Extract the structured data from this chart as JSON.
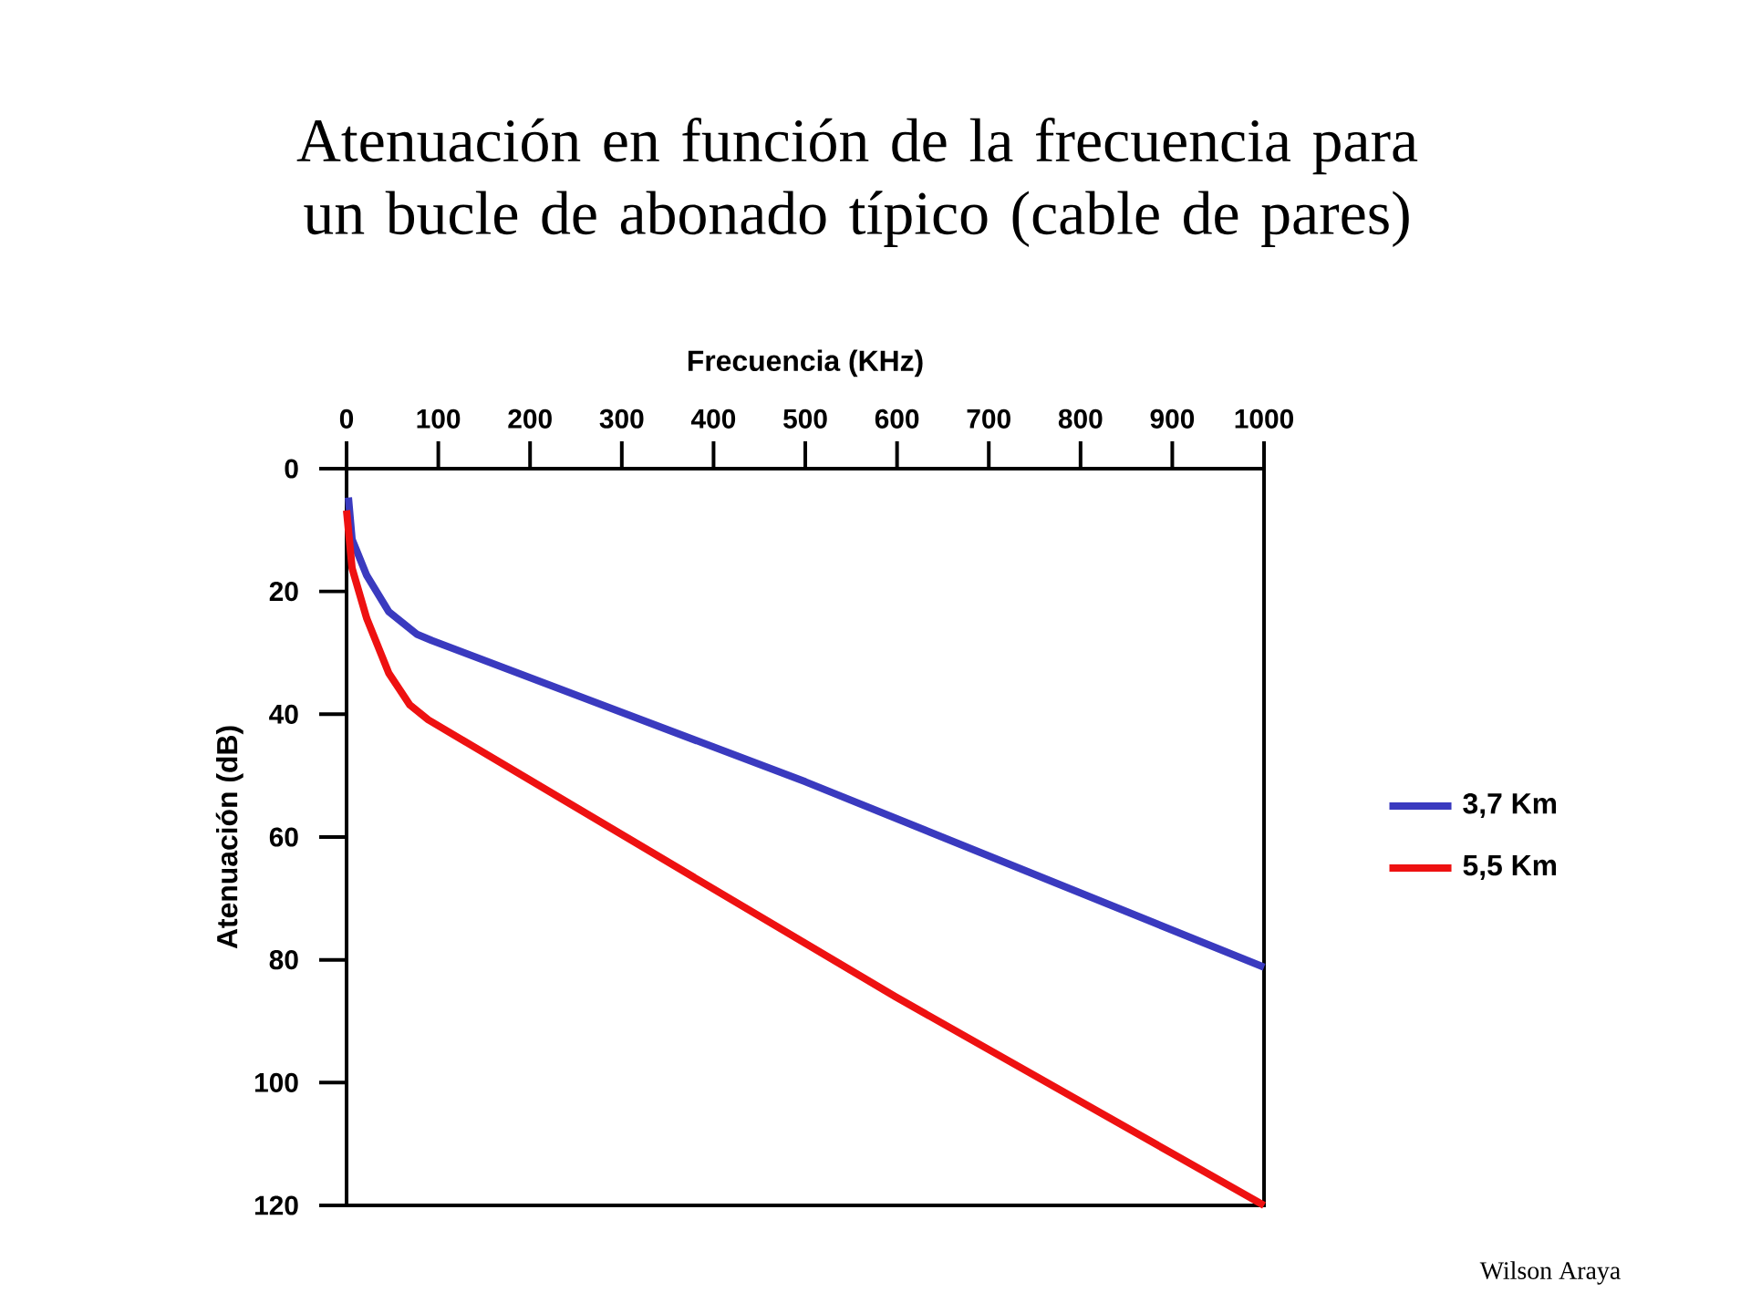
{
  "chart_data": {
    "type": "line",
    "title": "Atenuación en función de la frecuencia para un bucle de abonado típico (cable de pares)",
    "xlabel": "Frecuencia (KHz)",
    "ylabel": "Atenuación (dB)",
    "xlim": [
      0,
      1000
    ],
    "xticks": [
      0,
      100,
      200,
      300,
      400,
      500,
      600,
      700,
      800,
      900,
      1000
    ],
    "ylim": [
      120,
      0
    ],
    "yticks": [
      0,
      20,
      40,
      60,
      80,
      100,
      120
    ],
    "grid": false,
    "legend": "right",
    "marker": "none",
    "line_style": "solid",
    "series": [
      {
        "name": "3,7 Km",
        "color": "#3a3abf",
        "x": [
          2,
          6,
          22,
          46,
          77,
          93,
          500,
          1000
        ],
        "values": [
          4.7,
          11.5,
          17.4,
          23.3,
          27,
          28,
          51,
          81.2
        ]
      },
      {
        "name": "5,5 Km",
        "color": "#ee1111",
        "x": [
          0,
          6,
          22,
          46,
          69,
          89,
          598,
          1000
        ],
        "values": [
          6.8,
          16.2,
          24.4,
          33.3,
          38.5,
          40.9,
          86,
          120
        ]
      }
    ],
    "annotations": [
      "Wilson Araya"
    ]
  }
}
